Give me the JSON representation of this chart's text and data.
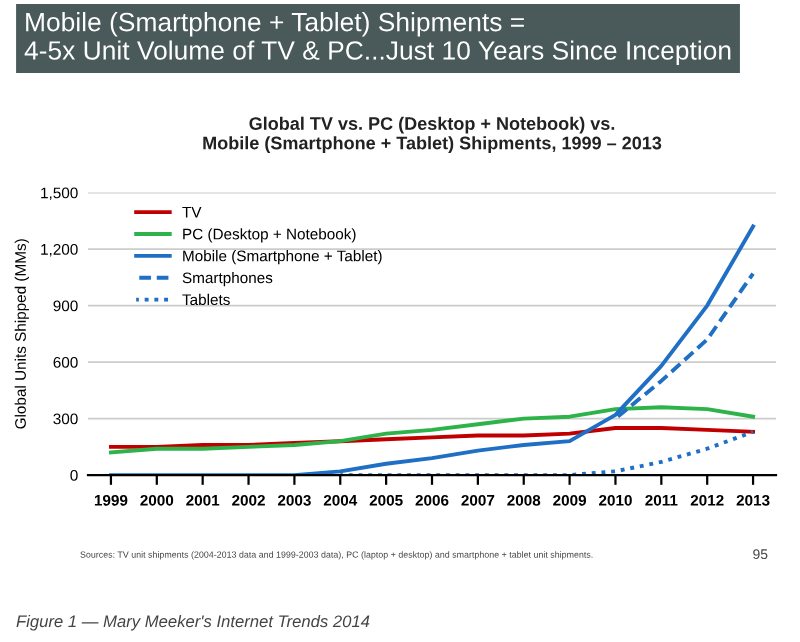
{
  "chart_data": {
    "type": "line",
    "title": "Mobile (Smartphone + Tablet) Shipments =\n4-5x Unit Volume of TV & PC...Just 10 Years Since Inception",
    "subtitle": "Global TV vs. PC (Desktop + Notebook) vs.\nMobile (Smartphone + Tablet) Shipments, 1999 – 2013",
    "ylabel": "Global Units Shipped (MMs)",
    "categories": [
      "1999",
      "2000",
      "2001",
      "2002",
      "2003",
      "2004",
      "2005",
      "2006",
      "2007",
      "2008",
      "2009",
      "2010",
      "2011",
      "2012",
      "2013"
    ],
    "series": [
      {
        "name": "TV",
        "color": "#c00000",
        "line_style": "solid",
        "values": [
          150,
          150,
          160,
          160,
          170,
          180,
          190,
          200,
          210,
          210,
          220,
          250,
          250,
          240,
          230
        ]
      },
      {
        "name": "PC (Desktop + Notebook)",
        "color": "#2eb34a",
        "line_style": "solid",
        "values": [
          120,
          140,
          140,
          150,
          160,
          180,
          220,
          240,
          270,
          300,
          310,
          350,
          360,
          350,
          310
        ]
      },
      {
        "name": "Mobile (Smartphone + Tablet)",
        "color": "#1f6fc5",
        "line_style": "solid",
        "values": [
          0,
          0,
          0,
          0,
          0,
          20,
          60,
          90,
          130,
          160,
          180,
          320,
          580,
          900,
          1320
        ]
      },
      {
        "name": "Smartphones",
        "color": "#1f6fc5",
        "line_style": "dashed",
        "values": [
          null,
          null,
          null,
          null,
          null,
          null,
          null,
          null,
          null,
          null,
          null,
          300,
          500,
          720,
          1070
        ]
      },
      {
        "name": "Tablets",
        "color": "#1f6fc5",
        "line_style": "dotted",
        "values": [
          null,
          null,
          null,
          null,
          null,
          0,
          0,
          0,
          0,
          0,
          0,
          20,
          70,
          140,
          230
        ]
      }
    ],
    "ylim": [
      0,
      1500
    ],
    "yticks": [
      {
        "value": 0,
        "label": "0"
      },
      {
        "value": 300,
        "label": "300"
      },
      {
        "value": 600,
        "label": "600"
      },
      {
        "value": 900,
        "label": "900"
      },
      {
        "value": 1200,
        "label": "1,200"
      },
      {
        "value": 1500,
        "label": "1,500"
      }
    ],
    "grid": "y",
    "legend": "top left",
    "annotations": [
      "Sources: TV unit shipments (2004-2013 data and 1999-2003 data), PC (laptop + desktop) and smartphone + tablet unit shipments.",
      "95",
      "Figure 1 — Mary Meeker's Internet Trends 2014"
    ]
  }
}
